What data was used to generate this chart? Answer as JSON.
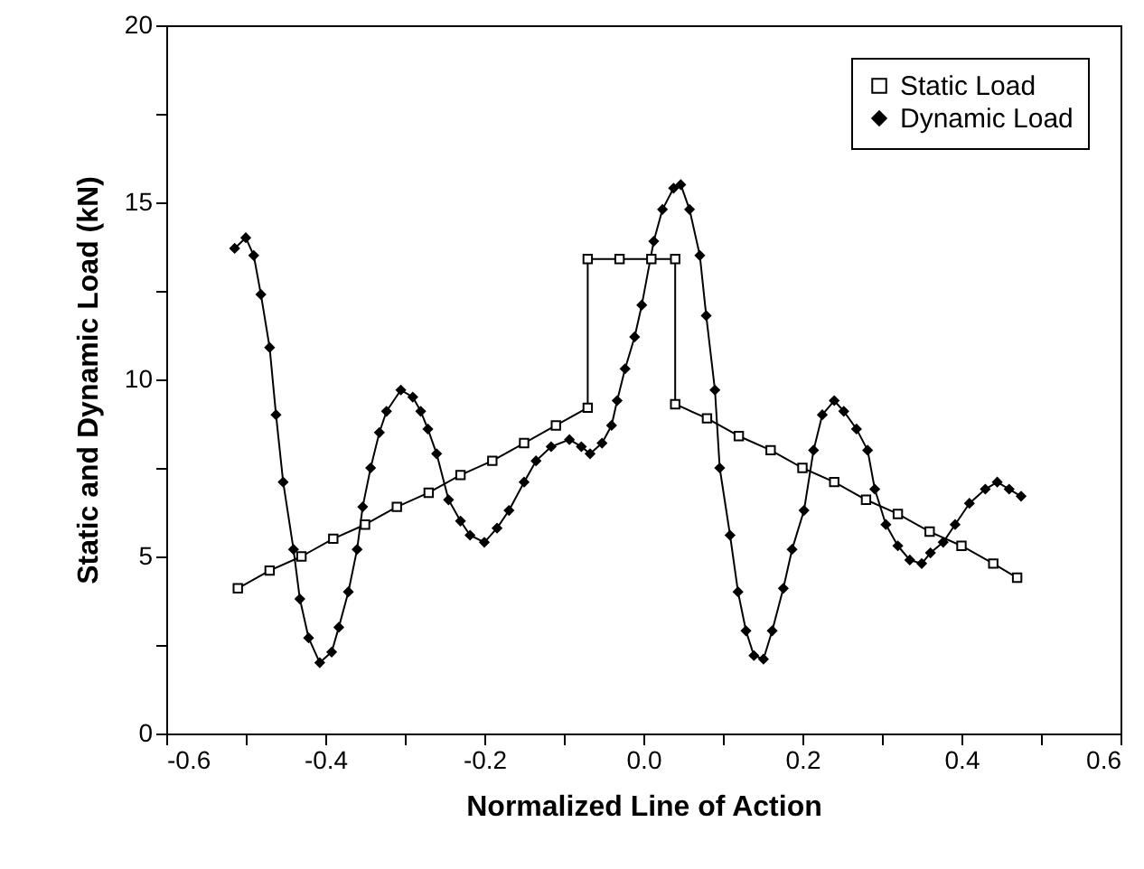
{
  "chart_data": {
    "type": "line",
    "xlabel": "Normalized Line of Action",
    "ylabel": "Static and Dynamic Load (kN)",
    "xlim": [
      -0.6,
      0.6
    ],
    "ylim": [
      0,
      20
    ],
    "xticks": [
      -0.6,
      {
        "value": -0.5,
        "label": null
      },
      -0.4,
      {
        "value": -0.3,
        "label": null
      },
      -0.2,
      {
        "value": -0.1,
        "label": null
      },
      {
        "value": 0,
        "label": "0.0"
      },
      {
        "value": 0.1,
        "label": null
      },
      0.2,
      {
        "value": 0.3,
        "label": null
      },
      0.4,
      {
        "value": 0.5,
        "label": null
      },
      0.6
    ],
    "yticks": [
      0,
      {
        "value": 2.5,
        "label": null
      },
      5,
      {
        "value": 7.5,
        "label": null
      },
      10,
      {
        "value": 12.5,
        "label": null
      },
      15,
      {
        "value": 17.5,
        "label": null
      },
      20
    ],
    "grid": false,
    "legend": "top right",
    "line_style": "solid",
    "series": [
      {
        "name": "Static Load",
        "color": "#000000",
        "marker": "square",
        "x": [
          -0.51,
          -0.47,
          -0.43,
          -0.39,
          -0.35,
          -0.31,
          -0.27,
          -0.23,
          -0.19,
          -0.15,
          -0.11,
          -0.07,
          -0.07,
          -0.03,
          0.01,
          0.04,
          0.04,
          0.08,
          0.12,
          0.16,
          0.2,
          0.24,
          0.28,
          0.32,
          0.36,
          0.4,
          0.44,
          0.47
        ],
        "values": [
          4.1,
          4.6,
          5.0,
          5.5,
          5.9,
          6.4,
          6.8,
          7.3,
          7.7,
          8.2,
          8.7,
          9.2,
          13.4,
          13.4,
          13.4,
          13.4,
          9.3,
          8.9,
          8.4,
          8.0,
          7.5,
          7.1,
          6.6,
          6.2,
          5.7,
          5.3,
          4.8,
          4.4
        ]
      },
      {
        "name": "Dynamic Load",
        "color": "#000000",
        "marker": "diamond",
        "x": [
          -0.514,
          -0.5,
          -0.49,
          -0.481,
          -0.47,
          -0.462,
          -0.453,
          -0.44,
          -0.432,
          -0.421,
          -0.407,
          -0.392,
          -0.383,
          -0.371,
          -0.36,
          -0.353,
          -0.343,
          -0.332,
          -0.323,
          -0.305,
          -0.29,
          -0.28,
          -0.271,
          -0.26,
          -0.245,
          -0.23,
          -0.218,
          -0.2,
          -0.184,
          -0.169,
          -0.15,
          -0.135,
          -0.116,
          -0.093,
          -0.078,
          -0.067,
          -0.052,
          -0.04,
          -0.033,
          -0.023,
          -0.011,
          -0.002,
          0.013,
          0.024,
          0.038,
          0.047,
          0.058,
          0.071,
          0.079,
          0.09,
          0.096,
          0.109,
          0.119,
          0.129,
          0.139,
          0.151,
          0.162,
          0.176,
          0.187,
          0.202,
          0.214,
          0.225,
          0.24,
          0.252,
          0.268,
          0.282,
          0.291,
          0.305,
          0.32,
          0.335,
          0.35,
          0.361,
          0.377,
          0.392,
          0.41,
          0.43,
          0.445,
          0.46,
          0.475
        ],
        "values": [
          13.7,
          14.0,
          13.5,
          12.4,
          10.9,
          9.0,
          7.1,
          5.2,
          3.8,
          2.7,
          2.0,
          2.3,
          3.0,
          4.0,
          5.2,
          6.4,
          7.5,
          8.5,
          9.1,
          9.7,
          9.5,
          9.1,
          8.6,
          7.9,
          6.6,
          6.0,
          5.6,
          5.4,
          5.8,
          6.3,
          7.1,
          7.7,
          8.1,
          8.3,
          8.1,
          7.9,
          8.2,
          8.7,
          9.4,
          10.3,
          11.2,
          12.1,
          13.9,
          14.8,
          15.4,
          15.5,
          14.8,
          13.5,
          11.8,
          9.7,
          7.5,
          5.6,
          4.0,
          2.9,
          2.2,
          2.1,
          2.9,
          4.1,
          5.2,
          6.3,
          8.0,
          9.0,
          9.4,
          9.1,
          8.6,
          8.0,
          6.9,
          5.9,
          5.3,
          4.9,
          4.8,
          5.1,
          5.4,
          5.9,
          6.5,
          6.9,
          7.1,
          6.9,
          6.7
        ]
      }
    ]
  }
}
